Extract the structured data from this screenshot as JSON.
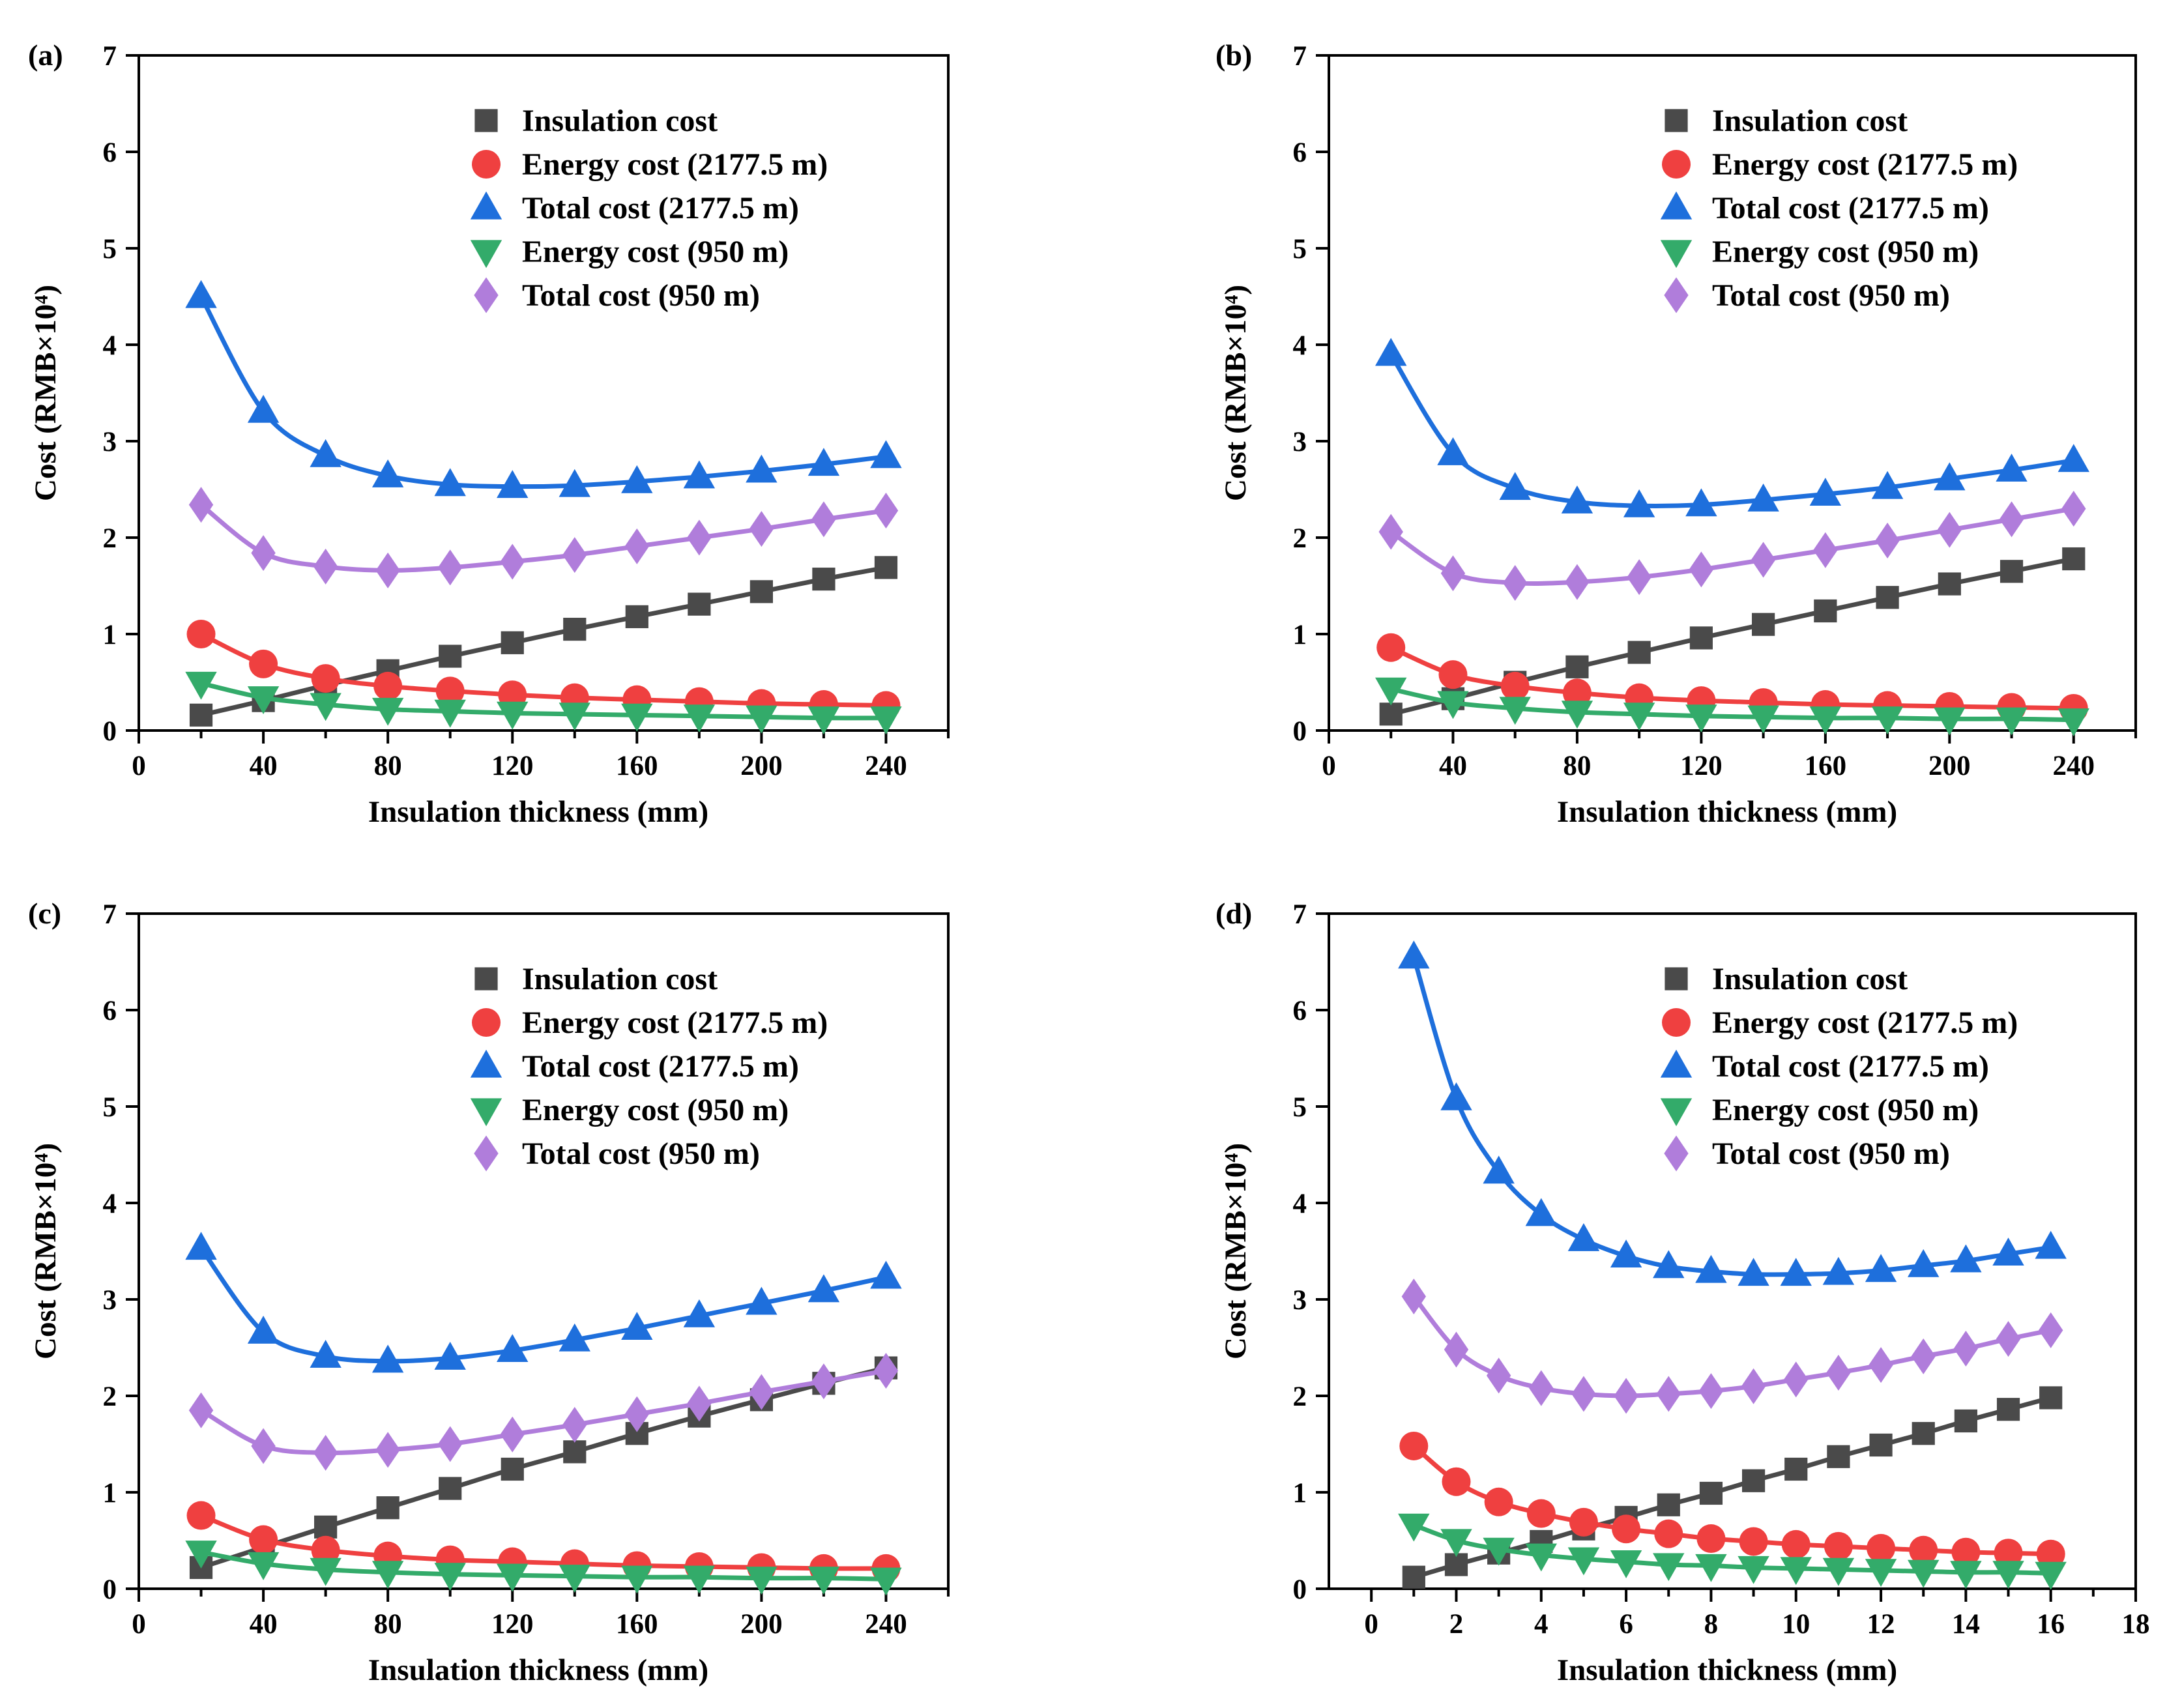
{
  "colors": {
    "insulation": "#4a4a4a",
    "energy_2177": "#ef4040",
    "total_2177": "#1e6fdc",
    "energy_950": "#33ab6a",
    "total_950": "#b07ddb"
  },
  "chart_data": [
    {
      "type": "line",
      "panel": "(a)",
      "title": "",
      "xlabel": "Insulation thickness (mm)",
      "ylabel": "Cost (RMB×10⁴)",
      "xlim": [
        0,
        260
      ],
      "ylim": [
        0,
        7
      ],
      "xticks": [
        0,
        40,
        80,
        120,
        160,
        200,
        240
      ],
      "yticks": [
        0,
        1,
        2,
        3,
        4,
        5,
        6,
        7
      ],
      "legend_position": "top-right",
      "x": [
        20,
        40,
        60,
        80,
        100,
        120,
        140,
        160,
        180,
        200,
        220,
        240
      ],
      "series": [
        {
          "name": "Insulation cost",
          "key": "insulation",
          "marker": "square",
          "values": [
            0.16,
            0.31,
            0.47,
            0.62,
            0.77,
            0.91,
            1.05,
            1.18,
            1.31,
            1.44,
            1.57,
            1.69
          ]
        },
        {
          "name": "Energy cost (2177.5 m)",
          "key": "energy_2177",
          "marker": "circle",
          "values": [
            1.0,
            0.69,
            0.54,
            0.46,
            0.41,
            0.37,
            0.34,
            0.32,
            0.3,
            0.28,
            0.27,
            0.26
          ]
        },
        {
          "name": "Total cost (2177.5 m)",
          "key": "total_2177",
          "marker": "triangle-up",
          "values": [
            4.5,
            3.31,
            2.85,
            2.64,
            2.55,
            2.53,
            2.54,
            2.58,
            2.63,
            2.69,
            2.76,
            2.84
          ]
        },
        {
          "name": "Energy cost (950 m)",
          "key": "energy_950",
          "marker": "triangle-down",
          "values": [
            0.49,
            0.34,
            0.27,
            0.22,
            0.2,
            0.18,
            0.17,
            0.16,
            0.15,
            0.14,
            0.13,
            0.13
          ]
        },
        {
          "name": "Total cost (950 m)",
          "key": "total_950",
          "marker": "diamond",
          "values": [
            2.34,
            1.84,
            1.7,
            1.66,
            1.69,
            1.75,
            1.82,
            1.91,
            2.0,
            2.09,
            2.19,
            2.28
          ]
        }
      ]
    },
    {
      "type": "line",
      "panel": "(b)",
      "title": "",
      "xlabel": "Insulation thickness (mm)",
      "ylabel": "Cost (RMB×10⁴)",
      "xlim": [
        0,
        260
      ],
      "ylim": [
        0,
        7
      ],
      "xticks": [
        0,
        40,
        80,
        120,
        160,
        200,
        240
      ],
      "yticks": [
        0,
        1,
        2,
        3,
        4,
        5,
        6,
        7
      ],
      "legend_position": "top-right",
      "x": [
        20,
        40,
        60,
        80,
        100,
        120,
        140,
        160,
        180,
        200,
        220,
        240
      ],
      "series": [
        {
          "name": "Insulation cost",
          "key": "insulation",
          "marker": "square",
          "values": [
            0.17,
            0.33,
            0.5,
            0.66,
            0.81,
            0.96,
            1.1,
            1.24,
            1.38,
            1.52,
            1.65,
            1.78
          ]
        },
        {
          "name": "Energy cost (2177.5 m)",
          "key": "energy_2177",
          "marker": "circle",
          "values": [
            0.86,
            0.58,
            0.46,
            0.39,
            0.34,
            0.31,
            0.29,
            0.27,
            0.26,
            0.25,
            0.24,
            0.23
          ]
        },
        {
          "name": "Total cost (2177.5 m)",
          "key": "total_2177",
          "marker": "triangle-up",
          "values": [
            3.9,
            2.87,
            2.51,
            2.37,
            2.33,
            2.34,
            2.39,
            2.45,
            2.52,
            2.61,
            2.7,
            2.8
          ]
        },
        {
          "name": "Energy cost (950 m)",
          "key": "energy_950",
          "marker": "triangle-down",
          "values": [
            0.43,
            0.29,
            0.23,
            0.19,
            0.17,
            0.15,
            0.14,
            0.13,
            0.13,
            0.12,
            0.12,
            0.11
          ]
        },
        {
          "name": "Total cost (950 m)",
          "key": "total_950",
          "marker": "diamond",
          "values": [
            2.06,
            1.63,
            1.53,
            1.54,
            1.59,
            1.67,
            1.77,
            1.87,
            1.97,
            2.08,
            2.19,
            2.3
          ]
        }
      ]
    },
    {
      "type": "line",
      "panel": "(c)",
      "title": "",
      "xlabel": "Insulation thickness (mm)",
      "ylabel": "Cost (RMB×10⁴)",
      "xlim": [
        0,
        260
      ],
      "ylim": [
        0,
        7
      ],
      "xticks": [
        0,
        40,
        80,
        120,
        160,
        200,
        240
      ],
      "yticks": [
        0,
        1,
        2,
        3,
        4,
        5,
        6,
        7
      ],
      "legend_position": "top-right",
      "x": [
        20,
        40,
        60,
        80,
        100,
        120,
        140,
        160,
        180,
        200,
        220,
        240
      ],
      "series": [
        {
          "name": "Insulation cost",
          "key": "insulation",
          "marker": "square",
          "values": [
            0.22,
            0.43,
            0.64,
            0.84,
            1.04,
            1.24,
            1.42,
            1.61,
            1.79,
            1.96,
            2.13,
            2.29
          ]
        },
        {
          "name": "Energy cost (2177.5 m)",
          "key": "energy_2177",
          "marker": "circle",
          "values": [
            0.76,
            0.51,
            0.4,
            0.34,
            0.3,
            0.28,
            0.26,
            0.24,
            0.23,
            0.22,
            0.21,
            0.21
          ]
        },
        {
          "name": "Total cost (2177.5 m)",
          "key": "total_2177",
          "marker": "triangle-up",
          "values": [
            3.53,
            2.66,
            2.41,
            2.36,
            2.39,
            2.47,
            2.58,
            2.7,
            2.83,
            2.96,
            3.09,
            3.23
          ]
        },
        {
          "name": "Energy cost (950 m)",
          "key": "energy_950",
          "marker": "triangle-down",
          "values": [
            0.38,
            0.26,
            0.2,
            0.17,
            0.15,
            0.14,
            0.13,
            0.12,
            0.12,
            0.11,
            0.11,
            0.1
          ]
        },
        {
          "name": "Total cost (950 m)",
          "key": "total_950",
          "marker": "diamond",
          "values": [
            1.85,
            1.48,
            1.41,
            1.44,
            1.5,
            1.6,
            1.7,
            1.81,
            1.92,
            2.04,
            2.15,
            2.26
          ]
        }
      ]
    },
    {
      "type": "line",
      "panel": "(d)",
      "title": "",
      "xlabel": "Insulation thickness (mm)",
      "ylabel": "Cost (RMB×10⁴)",
      "xlim": [
        -1,
        18
      ],
      "ylim": [
        0,
        7
      ],
      "xticks": [
        0,
        2,
        4,
        6,
        8,
        10,
        12,
        14,
        16,
        18
      ],
      "yticks": [
        0,
        1,
        2,
        3,
        4,
        5,
        6,
        7
      ],
      "legend_position": "top-right",
      "x": [
        1,
        2,
        3,
        4,
        5,
        6,
        7,
        8,
        9,
        10,
        11,
        12,
        13,
        14,
        15,
        16
      ],
      "series": [
        {
          "name": "Insulation cost",
          "key": "insulation",
          "marker": "square",
          "values": [
            0.12,
            0.25,
            0.37,
            0.49,
            0.62,
            0.74,
            0.87,
            0.99,
            1.12,
            1.24,
            1.37,
            1.49,
            1.61,
            1.74,
            1.86,
            1.98
          ]
        },
        {
          "name": "Energy cost (2177.5 m)",
          "key": "energy_2177",
          "marker": "circle",
          "values": [
            1.48,
            1.11,
            0.9,
            0.78,
            0.69,
            0.62,
            0.57,
            0.52,
            0.49,
            0.46,
            0.44,
            0.42,
            0.4,
            0.38,
            0.37,
            0.36
          ]
        },
        {
          "name": "Total cost (2177.5 m)",
          "key": "total_2177",
          "marker": "triangle-up",
          "values": [
            6.55,
            5.08,
            4.32,
            3.88,
            3.62,
            3.45,
            3.34,
            3.29,
            3.26,
            3.26,
            3.27,
            3.3,
            3.35,
            3.4,
            3.47,
            3.54
          ]
        },
        {
          "name": "Energy cost (950 m)",
          "key": "energy_950",
          "marker": "triangle-down",
          "values": [
            0.66,
            0.5,
            0.41,
            0.35,
            0.31,
            0.28,
            0.25,
            0.24,
            0.22,
            0.21,
            0.2,
            0.19,
            0.18,
            0.17,
            0.17,
            0.16
          ]
        },
        {
          "name": "Total cost (950 m)",
          "key": "total_950",
          "marker": "diamond",
          "values": [
            3.03,
            2.48,
            2.21,
            2.08,
            2.02,
            2.0,
            2.02,
            2.05,
            2.1,
            2.17,
            2.24,
            2.32,
            2.41,
            2.49,
            2.59,
            2.68
          ]
        }
      ]
    }
  ]
}
